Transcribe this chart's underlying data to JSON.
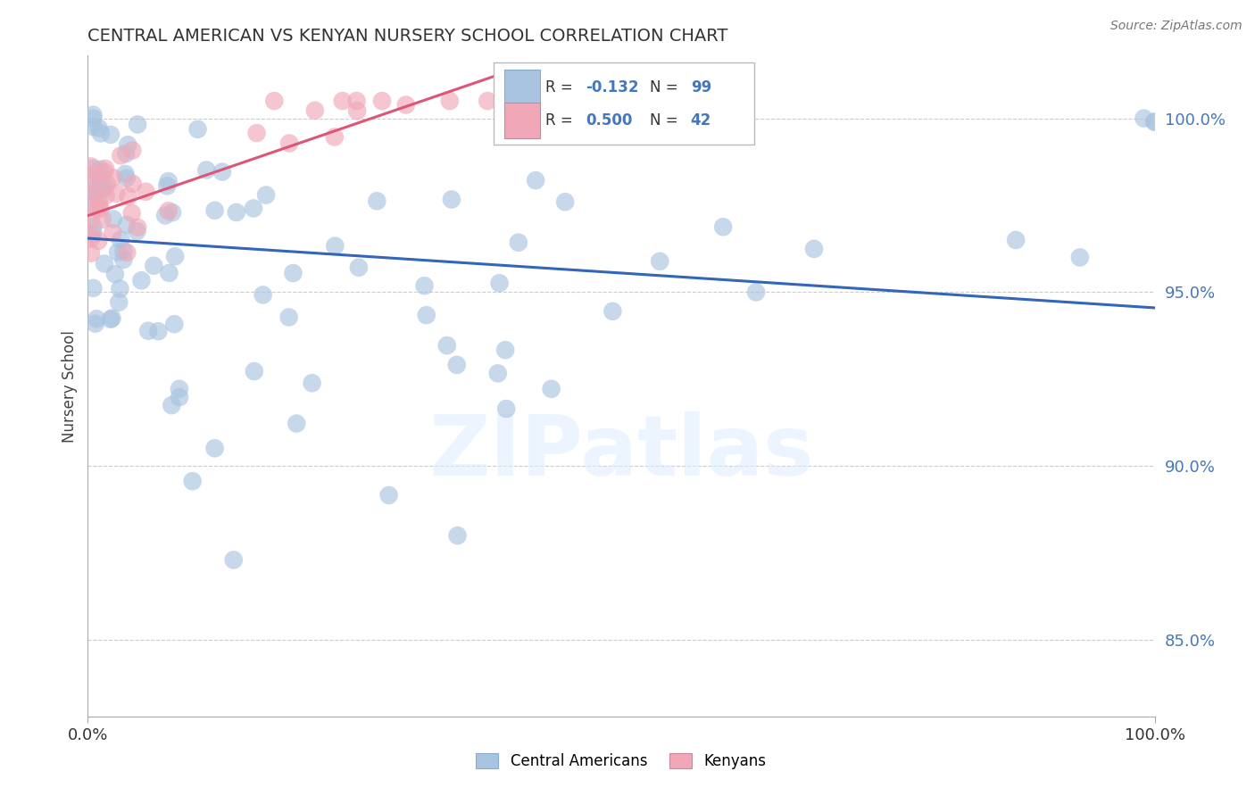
{
  "title": "CENTRAL AMERICAN VS KENYAN NURSERY SCHOOL CORRELATION CHART",
  "source": "Source: ZipAtlas.com",
  "ylabel": "Nursery School",
  "xlim": [
    0.0,
    1.0
  ],
  "ylim": [
    0.828,
    1.018
  ],
  "yticks": [
    0.85,
    0.9,
    0.95,
    1.0
  ],
  "ytick_labels": [
    "85.0%",
    "90.0%",
    "95.0%",
    "100.0%"
  ],
  "xticks": [
    0.0,
    1.0
  ],
  "xtick_labels": [
    "0.0%",
    "100.0%"
  ],
  "background_color": "#ffffff",
  "grid_color": "#cccccc",
  "watermark_text": "ZIPatlas",
  "blue_color": "#a8c4e0",
  "pink_color": "#f0a8b8",
  "blue_line_color": "#3366bb",
  "pink_line_color": "#dd5577",
  "title_color": "#333333",
  "tick_label_color_y": "#4477bb",
  "tick_label_color_x": "#333333",
  "axis_label_color": "#444444",
  "legend_R_color": "#4477bb",
  "legend_N_color": "#333333",
  "blue_line_x": [
    0.0,
    1.0
  ],
  "blue_line_y": [
    0.9655,
    0.9455
  ],
  "pink_line_x": [
    0.0,
    0.38
  ],
  "pink_line_y": [
    0.972,
    1.012
  ]
}
